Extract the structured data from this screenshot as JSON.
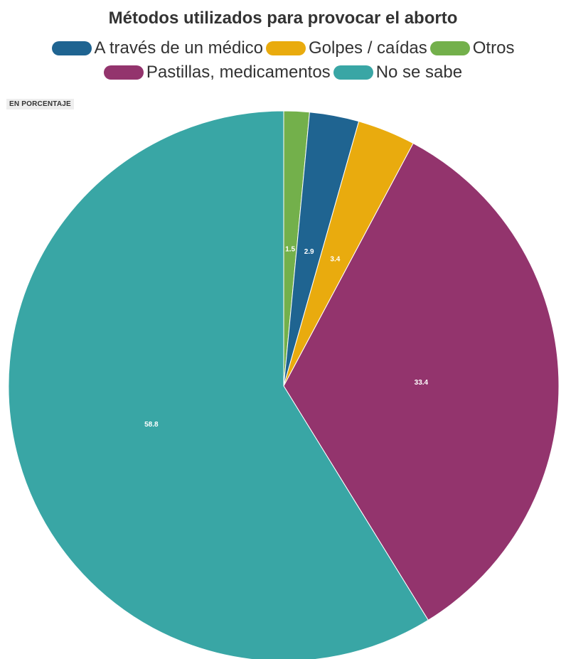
{
  "chart_data": {
    "type": "pie",
    "title": "Métodos utilizados para provocar el aborto",
    "unit_label": "EN PORCENTAJE",
    "slices": [
      {
        "label": "Otros",
        "value": 1.5,
        "color": "#73b04b"
      },
      {
        "label": "A través de un médico",
        "value": 2.9,
        "color": "#1f6491"
      },
      {
        "label": "Golpes / caídas",
        "value": 3.4,
        "color": "#e9ab0e"
      },
      {
        "label": "Pastillas, medicamentos",
        "value": 33.4,
        "color": "#93346d"
      },
      {
        "label": "No se sabe",
        "value": 58.8,
        "color": "#39a6a5"
      }
    ],
    "legend": [
      {
        "label": "A través de un médico",
        "color": "#1f6491"
      },
      {
        "label": "Golpes / caídas",
        "color": "#e9ab0e"
      },
      {
        "label": "Otros",
        "color": "#73b04b"
      },
      {
        "label": "Pastillas, medicamentos",
        "color": "#93346d"
      },
      {
        "label": "No se sabe",
        "color": "#39a6a5"
      }
    ],
    "legend_placement": "top"
  }
}
